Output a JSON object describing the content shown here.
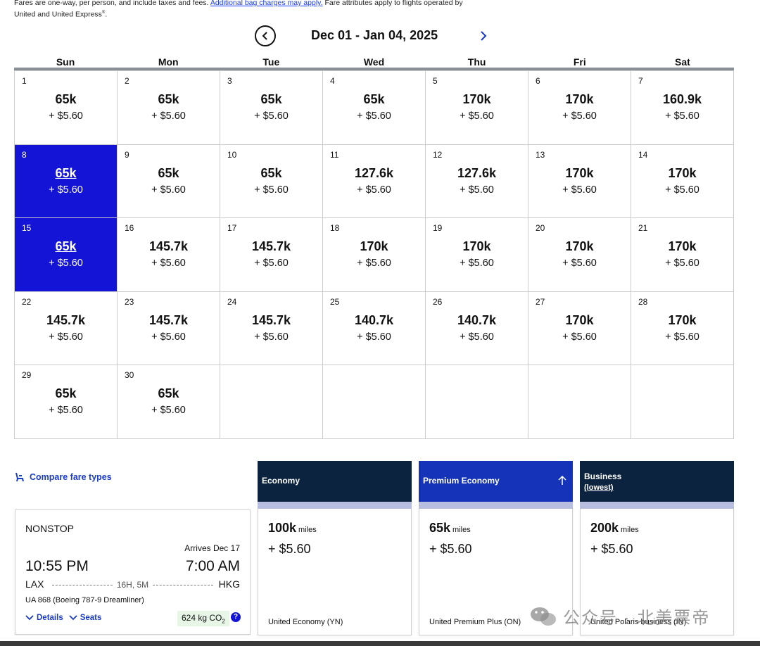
{
  "disclaimer": {
    "line1_start": "Fares are one-way, per person, and include taxes and fees.",
    "line1_link": "Additional bag charges may apply.",
    "line1_end": "Fare attributes apply to flights operated by",
    "line2": "United and United Express",
    "line2_sup": "®",
    "line2_end": "."
  },
  "nav": {
    "month_label": "Dec 01 - Jan 04, 2025"
  },
  "weekdays": [
    "Sun",
    "Mon",
    "Tue",
    "Wed",
    "Thu",
    "Fri",
    "Sat"
  ],
  "calendar": [
    {
      "day": "1",
      "miles": "65k",
      "tax": "+ $5.60",
      "selected": false
    },
    {
      "day": "2",
      "miles": "65k",
      "tax": "+ $5.60",
      "selected": false
    },
    {
      "day": "3",
      "miles": "65k",
      "tax": "+ $5.60",
      "selected": false
    },
    {
      "day": "4",
      "miles": "65k",
      "tax": "+ $5.60",
      "selected": false
    },
    {
      "day": "5",
      "miles": "170k",
      "tax": "+ $5.60",
      "selected": false
    },
    {
      "day": "6",
      "miles": "170k",
      "tax": "+ $5.60",
      "selected": false
    },
    {
      "day": "7",
      "miles": "160.9k",
      "tax": "+ $5.60",
      "selected": false
    },
    {
      "day": "8",
      "miles": "65k",
      "tax": "+ $5.60",
      "selected": true
    },
    {
      "day": "9",
      "miles": "65k",
      "tax": "+ $5.60",
      "selected": false
    },
    {
      "day": "10",
      "miles": "65k",
      "tax": "+ $5.60",
      "selected": false
    },
    {
      "day": "11",
      "miles": "127.6k",
      "tax": "+ $5.60",
      "selected": false
    },
    {
      "day": "12",
      "miles": "127.6k",
      "tax": "+ $5.60",
      "selected": false
    },
    {
      "day": "13",
      "miles": "170k",
      "tax": "+ $5.60",
      "selected": false
    },
    {
      "day": "14",
      "miles": "170k",
      "tax": "+ $5.60",
      "selected": false
    },
    {
      "day": "15",
      "miles": "65k",
      "tax": "+ $5.60",
      "selected": true
    },
    {
      "day": "16",
      "miles": "145.7k",
      "tax": "+ $5.60",
      "selected": false
    },
    {
      "day": "17",
      "miles": "145.7k",
      "tax": "+ $5.60",
      "selected": false
    },
    {
      "day": "18",
      "miles": "170k",
      "tax": "+ $5.60",
      "selected": false
    },
    {
      "day": "19",
      "miles": "170k",
      "tax": "+ $5.60",
      "selected": false
    },
    {
      "day": "20",
      "miles": "170k",
      "tax": "+ $5.60",
      "selected": false
    },
    {
      "day": "21",
      "miles": "170k",
      "tax": "+ $5.60",
      "selected": false
    },
    {
      "day": "22",
      "miles": "145.7k",
      "tax": "+ $5.60",
      "selected": false
    },
    {
      "day": "23",
      "miles": "145.7k",
      "tax": "+ $5.60",
      "selected": false
    },
    {
      "day": "24",
      "miles": "145.7k",
      "tax": "+ $5.60",
      "selected": false
    },
    {
      "day": "25",
      "miles": "140.7k",
      "tax": "+ $5.60",
      "selected": false
    },
    {
      "day": "26",
      "miles": "140.7k",
      "tax": "+ $5.60",
      "selected": false
    },
    {
      "day": "27",
      "miles": "170k",
      "tax": "+ $5.60",
      "selected": false
    },
    {
      "day": "28",
      "miles": "170k",
      "tax": "+ $5.60",
      "selected": false
    },
    {
      "day": "29",
      "miles": "65k",
      "tax": "+ $5.60",
      "selected": false
    },
    {
      "day": "30",
      "miles": "65k",
      "tax": "+ $5.60",
      "selected": false
    },
    {
      "day": "",
      "miles": "",
      "tax": "",
      "selected": false
    },
    {
      "day": "",
      "miles": "",
      "tax": "",
      "selected": false
    },
    {
      "day": "",
      "miles": "",
      "tax": "",
      "selected": false
    },
    {
      "day": "",
      "miles": "",
      "tax": "",
      "selected": false
    },
    {
      "day": "",
      "miles": "",
      "tax": "",
      "selected": false
    }
  ],
  "compare": {
    "label": "Compare fare types",
    "icon": "seat-icon"
  },
  "flight": {
    "type": "NONSTOP",
    "arrives": "Arrives Dec 17",
    "depart_time": "10:55 PM",
    "arrive_time": "7:00 AM",
    "origin": "LAX",
    "destination": "HKG",
    "duration": "16H, 5M",
    "aircraft": "UA 868 (Boeing 787-9 Dreamliner)",
    "details_label": "Details",
    "seats_label": "Seats",
    "co2_value": "624 kg CO",
    "co2_sub": "2",
    "info_label": "?"
  },
  "fares": [
    {
      "name": "Economy",
      "sub": "",
      "miles": "100k",
      "unit": "miles",
      "tax": "+ $5.60",
      "fare_class": "United Economy (YN)",
      "header_color": "#0c2340"
    },
    {
      "name": "Premium Economy",
      "sub": "",
      "miles": "65k",
      "unit": "miles",
      "tax": "+ $5.60",
      "fare_class": "United Premium Plus (ON)",
      "header_color": "#1433b8"
    },
    {
      "name": "Business",
      "sub": "(lowest)",
      "miles": "200k",
      "unit": "miles",
      "tax": "+ $5.60",
      "fare_class": "United Polaris business (IN)",
      "header_color": "#0c2340"
    }
  ],
  "watermark": "公众号 · 北美票帝",
  "colors": {
    "selected": "#1414d6",
    "link": "#1a3ccc",
    "dark_navy": "#0c2340"
  }
}
